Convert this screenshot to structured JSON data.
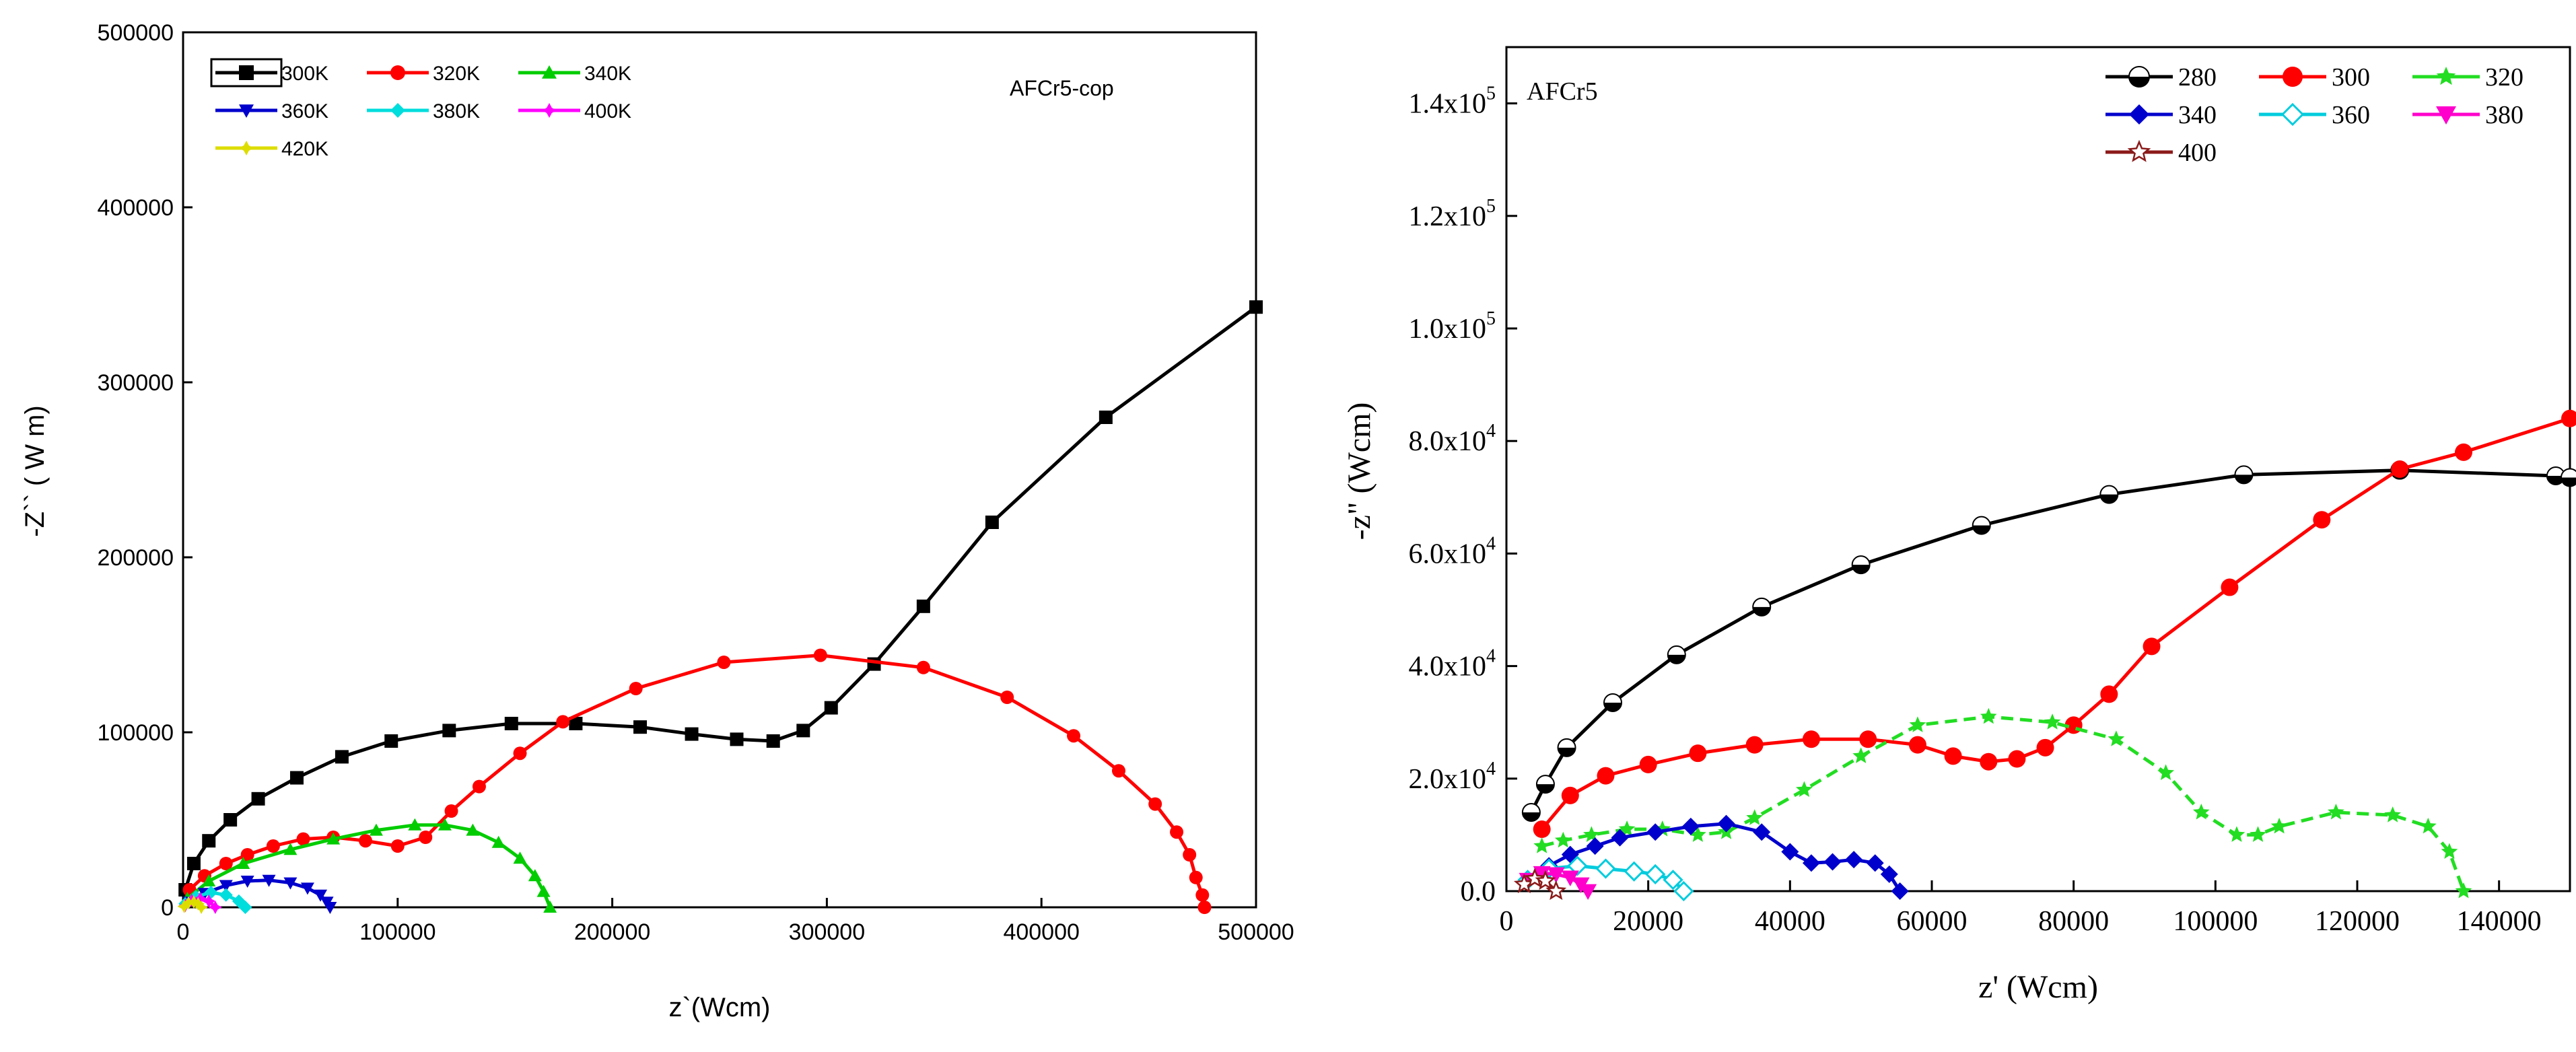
{
  "chart_data": [
    {
      "type": "line",
      "title": "AFCr5-cop",
      "xlabel": "z`(Wcm)",
      "ylabel": "-Z`` ( W m)",
      "xlim": [
        0,
        500000
      ],
      "ylim": [
        0,
        500000
      ],
      "xticks": [
        0,
        100000,
        200000,
        300000,
        400000,
        500000
      ],
      "yticks": [
        0,
        100000,
        200000,
        300000,
        400000,
        500000
      ],
      "xtick_labels": [
        "0",
        "100000",
        "200000",
        "300000",
        "400000",
        "500000"
      ],
      "ytick_labels": [
        "0",
        "100000",
        "200000",
        "300000",
        "400000",
        "500000"
      ],
      "legend_position": "top-left",
      "series": [
        {
          "name": "300K",
          "color": "#000000",
          "marker": "square",
          "x": [
            1000,
            5000,
            12000,
            22000,
            35000,
            53000,
            74000,
            97000,
            124000,
            153000,
            183000,
            213000,
            237000,
            258000,
            275000,
            289000,
            302000,
            322000,
            345000,
            377000,
            430000,
            500000
          ],
          "y": [
            10000,
            25000,
            38000,
            50000,
            62000,
            74000,
            86000,
            95000,
            101000,
            105000,
            105000,
            103000,
            99000,
            96000,
            95000,
            101000,
            114000,
            139000,
            172000,
            220000,
            280000,
            343000
          ]
        },
        {
          "name": "320K",
          "color": "#ff0000",
          "marker": "circle",
          "x": [
            3000,
            10000,
            20000,
            30000,
            42000,
            56000,
            70000,
            85000,
            100000,
            113000,
            125000,
            138000,
            157000,
            177000,
            211000,
            252000,
            297000,
            345000,
            384000,
            415000,
            436000,
            453000,
            463000,
            469000,
            472000,
            475000,
            476000
          ],
          "y": [
            10000,
            18000,
            25000,
            30000,
            35000,
            39000,
            40000,
            38000,
            35000,
            40000,
            55000,
            69000,
            88000,
            106000,
            125000,
            140000,
            144000,
            137000,
            120000,
            98000,
            78000,
            59000,
            43000,
            30000,
            17000,
            7000,
            0
          ]
        },
        {
          "name": "340K",
          "color": "#00cc00",
          "marker": "triangle-up",
          "x": [
            2000,
            12000,
            28000,
            50000,
            70000,
            90000,
            108000,
            122000,
            135000,
            147000,
            157000,
            164000,
            168000,
            171000
          ],
          "y": [
            5000,
            15000,
            25000,
            33000,
            39000,
            44000,
            47000,
            47000,
            44000,
            37000,
            28000,
            18000,
            9000,
            0
          ]
        },
        {
          "name": "360K",
          "color": "#0000cc",
          "marker": "triangle-down",
          "x": [
            3000,
            10000,
            20000,
            30000,
            40000,
            50000,
            58000,
            64000,
            67000,
            68500
          ],
          "y": [
            3000,
            8000,
            12500,
            15000,
            15500,
            14000,
            11000,
            7000,
            3000,
            0
          ]
        },
        {
          "name": "380K",
          "color": "#00dddd",
          "marker": "diamond",
          "x": [
            1000,
            6000,
            13000,
            20000,
            26000,
            29000
          ],
          "y": [
            2000,
            6000,
            8500,
            7000,
            3500,
            0
          ]
        },
        {
          "name": "400K",
          "color": "#ff00ff",
          "marker": "star4",
          "x": [
            1000,
            4000,
            8000,
            12000,
            15000
          ],
          "y": [
            1000,
            4000,
            5000,
            3500,
            0
          ]
        },
        {
          "name": "420K",
          "color": "#dddd00",
          "marker": "star4",
          "x": [
            500,
            2500,
            5000,
            7000,
            8500
          ],
          "y": [
            500,
            2500,
            3000,
            2000,
            0
          ]
        }
      ]
    },
    {
      "type": "line",
      "title": "AFCr5",
      "xlabel": "z' (Wcm)",
      "ylabel": "-z\" (Wcm)",
      "xlim": [
        0,
        150000
      ],
      "ylim": [
        0,
        150000
      ],
      "xticks": [
        0,
        20000,
        40000,
        60000,
        80000,
        100000,
        120000,
        140000
      ],
      "xtick_labels": [
        "0",
        "20000",
        "40000",
        "60000",
        "80000",
        "100000",
        "120000",
        "140000"
      ],
      "yticks": [
        0,
        20000,
        40000,
        60000,
        80000,
        100000,
        120000,
        140000
      ],
      "ytick_labels": [
        {
          "base": "0.0",
          "exp": ""
        },
        {
          "base": "2.0x10",
          "exp": "4"
        },
        {
          "base": "4.0x10",
          "exp": "4"
        },
        {
          "base": "6.0x10",
          "exp": "4"
        },
        {
          "base": "8.0x10",
          "exp": "4"
        },
        {
          "base": "1.0x10",
          "exp": "5"
        },
        {
          "base": "1.2x10",
          "exp": "5"
        },
        {
          "base": "1.4x10",
          "exp": "5"
        }
      ],
      "legend_position": "top-right",
      "series": [
        {
          "name": "280",
          "color": "#000000",
          "marker": "circle-half",
          "x": [
            3500,
            5500,
            8500,
            15000,
            24000,
            36000,
            50000,
            67000,
            85000,
            104000,
            126000,
            148000,
            150000
          ],
          "y": [
            14000,
            19000,
            25500,
            33500,
            42000,
            50500,
            58000,
            65000,
            70500,
            74000,
            74800,
            73800,
            73500
          ]
        },
        {
          "name": "300",
          "color": "#ff0000",
          "marker": "circle",
          "x": [
            5000,
            9000,
            14000,
            20000,
            27000,
            35000,
            43000,
            51000,
            58000,
            63000,
            68000,
            72000,
            76000,
            80000,
            85000,
            91000,
            102000,
            115000,
            126000,
            135000,
            150000
          ],
          "y": [
            11000,
            17000,
            20500,
            22500,
            24500,
            26000,
            27000,
            27000,
            26000,
            24000,
            23000,
            23500,
            25500,
            29500,
            35000,
            43500,
            54000,
            66000,
            75000,
            78000,
            84000
          ]
        },
        {
          "name": "320",
          "color": "#22dd22",
          "marker": "star",
          "x": [
            5000,
            8000,
            12000,
            17000,
            22000,
            27000,
            31000,
            35000,
            42000,
            50000,
            58000,
            68000,
            77000,
            86000,
            93000,
            98000,
            103000,
            106000,
            109000,
            117000,
            125000,
            130000,
            133000,
            135000
          ],
          "y": [
            8000,
            9000,
            10000,
            11000,
            11000,
            10000,
            10500,
            13000,
            18000,
            24000,
            29500,
            31000,
            30000,
            27000,
            21000,
            14000,
            10000,
            10000,
            11500,
            14000,
            13500,
            11500,
            7000,
            0
          ]
        },
        {
          "name": "340",
          "color": "#0000cc",
          "marker": "diamond",
          "x": [
            3000,
            6000,
            9000,
            12500,
            16000,
            21000,
            26000,
            31000,
            36000,
            40000,
            43000,
            46000,
            49000,
            52000,
            54000,
            55500
          ],
          "y": [
            2000,
            4500,
            6500,
            8000,
            9500,
            10500,
            11500,
            12000,
            10500,
            7000,
            5000,
            5200,
            5600,
            5000,
            3000,
            0
          ]
        },
        {
          "name": "360",
          "color": "#00ccdd",
          "marker": "diamond-open",
          "x": [
            3000,
            6000,
            10000,
            14000,
            18000,
            21000,
            23500,
            25000
          ],
          "y": [
            2000,
            4000,
            4500,
            4000,
            3500,
            3000,
            2000,
            0
          ]
        },
        {
          "name": "380",
          "color": "#ff00cc",
          "marker": "triangle-down",
          "x": [
            3000,
            5000,
            7000,
            9000,
            10500,
            11500
          ],
          "y": [
            2000,
            3200,
            3000,
            2400,
            1200,
            0
          ]
        },
        {
          "name": "400",
          "color": "#8b1a1a",
          "marker": "star-open",
          "x": [
            2500,
            4000,
            5500,
            7000
          ],
          "y": [
            1200,
            2200,
            1800,
            0
          ]
        }
      ]
    }
  ]
}
